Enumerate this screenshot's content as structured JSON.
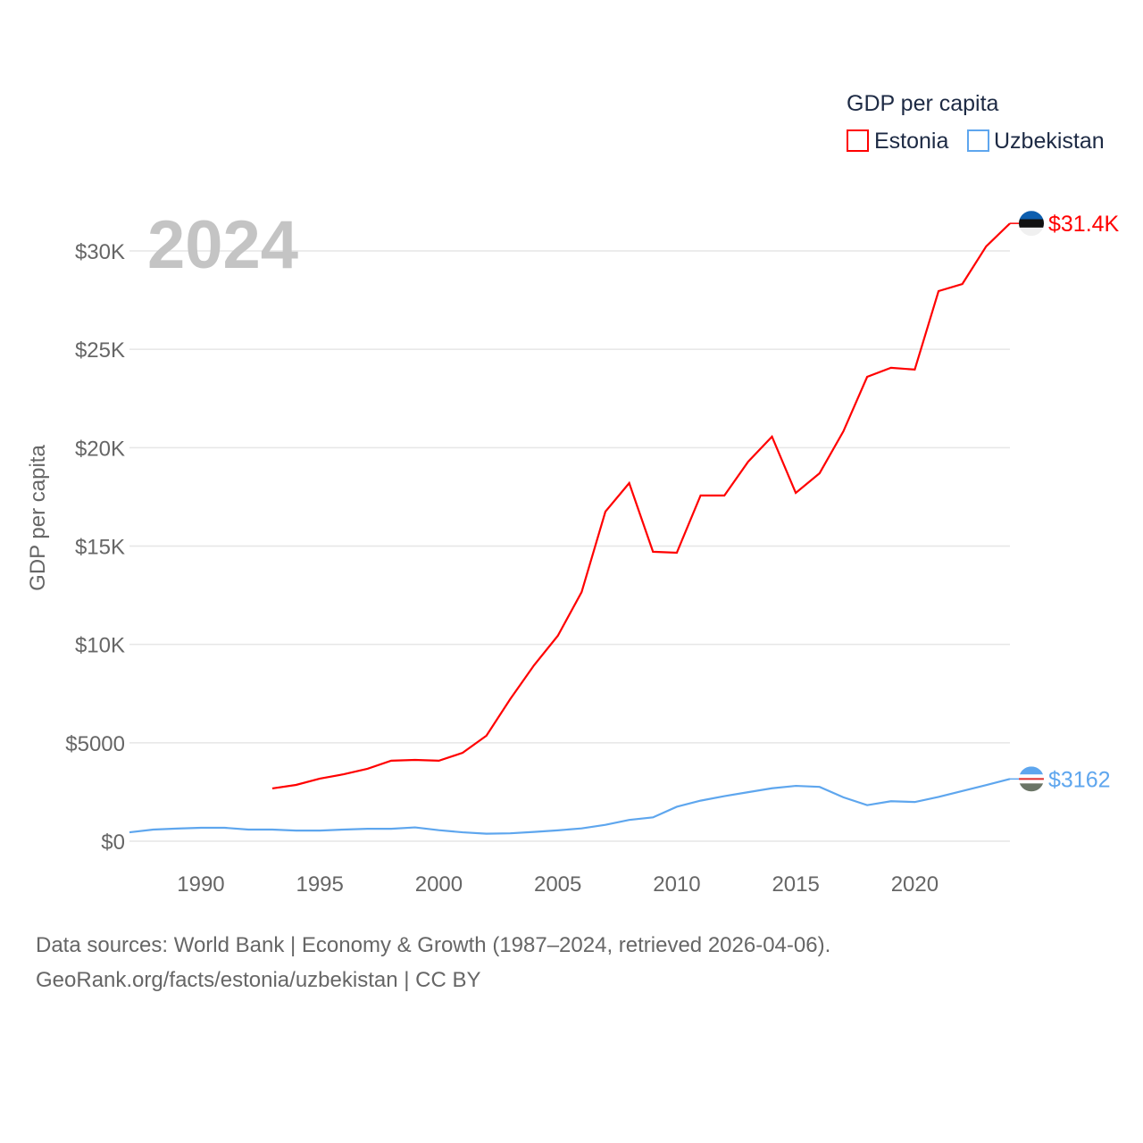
{
  "chart_data": {
    "type": "line",
    "title": "GDP per capita",
    "ylabel": "GDP per capita",
    "xlabel": "",
    "year_label": "2024",
    "xlim": [
      1987,
      2024
    ],
    "ylim": [
      0,
      30000
    ],
    "grid": true,
    "legend_position": "top-right",
    "x_ticks": [
      1990,
      1995,
      2000,
      2005,
      2010,
      2015,
      2020
    ],
    "y_ticks": [
      {
        "value": 0,
        "label": "$0"
      },
      {
        "value": 5000,
        "label": "$5000"
      },
      {
        "value": 10000,
        "label": "$10K"
      },
      {
        "value": 15000,
        "label": "$15K"
      },
      {
        "value": 20000,
        "label": "$20K"
      },
      {
        "value": 25000,
        "label": "$25K"
      },
      {
        "value": 30000,
        "label": "$30K"
      }
    ],
    "series": [
      {
        "name": "Estonia",
        "color": "#ff0000",
        "end_label": "$31.4K",
        "x": [
          1993,
          1994,
          1995,
          1996,
          1997,
          1998,
          1999,
          2000,
          2001,
          2002,
          2003,
          2004,
          2005,
          2006,
          2007,
          2008,
          2009,
          2010,
          2011,
          2012,
          2013,
          2014,
          2015,
          2016,
          2017,
          2018,
          2019,
          2020,
          2021,
          2022,
          2023,
          2024
        ],
        "values": [
          2680,
          2860,
          3180,
          3400,
          3680,
          4090,
          4130,
          4090,
          4490,
          5360,
          7220,
          8940,
          10440,
          12660,
          16750,
          18200,
          14710,
          14660,
          17570,
          17570,
          19290,
          20560,
          17700,
          18700,
          20830,
          23600,
          24060,
          23970,
          27960,
          28320,
          30230,
          31400
        ]
      },
      {
        "name": "Uzbekistan",
        "color": "#5ea6ee",
        "end_label": "$3162",
        "x": [
          1987,
          1988,
          1989,
          1990,
          1991,
          1992,
          1993,
          1994,
          1995,
          1996,
          1997,
          1998,
          1999,
          2000,
          2001,
          2002,
          2003,
          2004,
          2005,
          2006,
          2007,
          2008,
          2009,
          2010,
          2011,
          2012,
          2013,
          2014,
          2015,
          2016,
          2017,
          2018,
          2019,
          2020,
          2021,
          2022,
          2023,
          2024
        ],
        "values": [
          450,
          590,
          640,
          680,
          680,
          590,
          590,
          540,
          540,
          590,
          630,
          630,
          700,
          560,
          450,
          380,
          400,
          470,
          550,
          650,
          830,
          1080,
          1210,
          1750,
          2060,
          2290,
          2490,
          2690,
          2810,
          2760,
          2230,
          1830,
          2030,
          1990,
          2250,
          2550,
          2850,
          3162
        ]
      }
    ]
  },
  "footer": {
    "line1": "Data sources: World Bank | Economy & Growth (1987–2024, retrieved 2026-04-06).",
    "line2": "GeoRank.org/facts/estonia/uzbekistan | CC BY"
  }
}
